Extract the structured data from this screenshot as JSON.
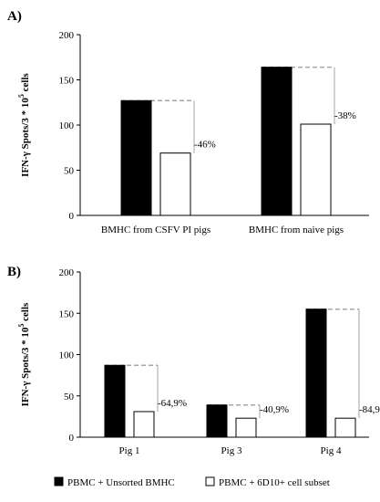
{
  "chart_data": [
    {
      "panel_label": "A)",
      "type": "bar",
      "ylabel": "IFN-γ Spots/3 * 10",
      "ylabel_sup": "5",
      "ylabel_tail": " cells",
      "ylim": [
        0,
        200
      ],
      "yticks": [
        "0",
        "50",
        "100",
        "150",
        "200"
      ],
      "categories": [
        "BMHC from CSFV PI pigs",
        "BMHC from naive pigs"
      ],
      "series": [
        {
          "values": [
            127,
            164
          ]
        },
        {
          "values": [
            69,
            101
          ]
        }
      ],
      "annotations": [
        "-46%",
        "-38%"
      ],
      "reference_lines": "dashed gray line at the black bar height extending over the white bar, with a vertical gray connector down to the white bar",
      "grid": false
    },
    {
      "panel_label": "B)",
      "type": "bar",
      "ylabel": "IFN-γ Spots/3 * 10",
      "ylabel_sup": "5",
      "ylabel_tail": " cells",
      "ylim": [
        0,
        200
      ],
      "yticks": [
        "0",
        "50",
        "100",
        "150",
        "200"
      ],
      "categories": [
        "Pig 1",
        "Pig 3",
        "Pig 4"
      ],
      "series": [
        {
          "values": [
            87,
            39,
            155
          ]
        },
        {
          "values": [
            31,
            23,
            23
          ]
        }
      ],
      "annotations": [
        "-64,9%",
        "-40,9%",
        "-84,9%"
      ],
      "reference_lines": "dashed gray line at the black bar height extending over the white bar, with a vertical gray connector down to the white bar",
      "grid": false
    }
  ],
  "legend": {
    "position": "bottom",
    "items": [
      {
        "label": "PBMC + Unsorted BMHC",
        "color": "#000000"
      },
      {
        "label": "PBMC + 6D10+ cell subset",
        "color": "#ffffff"
      }
    ]
  },
  "colors": {
    "filled_bar": "#000000",
    "open_bar": "#ffffff",
    "reference_line": "#a6a6a6",
    "axis": "#000000"
  }
}
